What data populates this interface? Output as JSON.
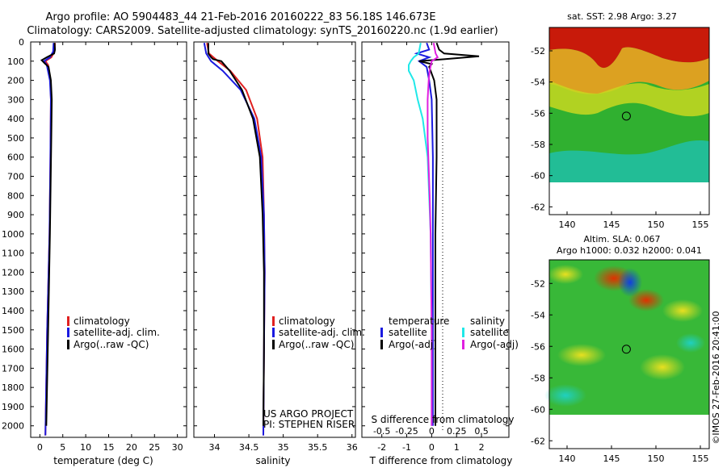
{
  "header": {
    "title_line1": "Argo profile: AO 5904483_44 21-Feb-2016 20160222_83 56.18S 146.673E",
    "title_line2": "Climatology: CARS2009. Satellite-adjusted climatology: synTS_20160220.nc (1.9d earlier)"
  },
  "credit": {
    "line1": "US ARGO PROJECT",
    "line2": "PI: STEPHEN RISER"
  },
  "timestamp": "©IMOS 27-Feb-2016 20:41:00",
  "colors": {
    "climatology": "#e02020",
    "satellite": "#1a1ae0",
    "argo": "#000000",
    "salinity_satellite": "#20e8e8",
    "salinity_argo": "#e020e0"
  },
  "chart_data": [
    {
      "type": "line",
      "id": "temperature",
      "xlabel": "temperature (deg C)",
      "ylabel": "depth",
      "xlim": [
        -2,
        32
      ],
      "ylim": [
        2060,
        0
      ],
      "x_ticks": [
        0,
        5,
        10,
        15,
        20,
        25,
        30
      ],
      "y_ticks": [
        0,
        100,
        200,
        300,
        400,
        500,
        600,
        700,
        800,
        900,
        1000,
        1100,
        1200,
        1300,
        1400,
        1500,
        1600,
        1700,
        1800,
        1900,
        2000
      ],
      "legend": [
        "climatology",
        "satellite-adj. clim.",
        "Argo(..raw -QC)"
      ],
      "series": [
        {
          "name": "climatology",
          "depth": [
            5,
            50,
            80,
            100,
            120,
            200,
            300,
            600,
            1000,
            1500,
            2050
          ],
          "values": [
            3.3,
            3.2,
            2.5,
            1.2,
            1.8,
            2.3,
            2.4,
            2.3,
            2.1,
            1.6,
            1.2
          ]
        },
        {
          "name": "satellite-adj. clim.",
          "depth": [
            5,
            50,
            80,
            100,
            120,
            200,
            300,
            600,
            1000,
            1500,
            2050
          ],
          "values": [
            3.0,
            2.9,
            2.2,
            0.9,
            1.5,
            2.2,
            2.4,
            2.3,
            2.1,
            1.6,
            1.2
          ]
        },
        {
          "name": "Argo(..raw -QC)",
          "depth": [
            5,
            40,
            60,
            80,
            95,
            110,
            130,
            200,
            300,
            500,
            1000,
            1500,
            2000
          ],
          "values": [
            3.2,
            3.3,
            3.1,
            1.5,
            0.4,
            1.0,
            1.9,
            2.4,
            2.6,
            2.5,
            2.2,
            1.8,
            1.4
          ]
        }
      ]
    },
    {
      "type": "line",
      "id": "salinity",
      "xlabel": "salinity",
      "xlim": [
        33.7,
        36.05
      ],
      "ylim": [
        2060,
        0
      ],
      "x_ticks": [
        34,
        34.5,
        35,
        35.5,
        36
      ],
      "legend": [
        "climatology",
        "satellite-adj. clim.",
        "Argo(..raw -QC)"
      ],
      "series": [
        {
          "name": "climatology",
          "depth": [
            5,
            60,
            100,
            150,
            250,
            400,
            600,
            900,
            1200,
            1600,
            2050
          ],
          "values": [
            33.89,
            33.92,
            34.05,
            34.23,
            34.46,
            34.62,
            34.7,
            34.72,
            34.73,
            34.72,
            34.71
          ]
        },
        {
          "name": "satellite-adj. clim.",
          "depth": [
            5,
            60,
            100,
            150,
            250,
            400,
            600,
            900,
            1200,
            1600,
            2050
          ],
          "values": [
            33.85,
            33.88,
            33.95,
            34.12,
            34.38,
            34.58,
            34.68,
            34.72,
            34.73,
            34.72,
            34.71
          ]
        },
        {
          "name": "Argo(..raw -QC)",
          "depth": [
            5,
            60,
            80,
            90,
            100,
            150,
            250,
            400,
            600,
            900,
            1200,
            1600,
            2000
          ],
          "values": [
            33.91,
            33.91,
            33.95,
            33.98,
            34.1,
            34.22,
            34.4,
            34.56,
            34.66,
            34.7,
            34.72,
            34.72,
            34.71
          ]
        }
      ]
    },
    {
      "type": "line",
      "id": "difference",
      "xlabel": "T difference from climatology",
      "x2label": "S difference from climatology",
      "xlim": [
        -2.8,
        3.1
      ],
      "x2lim": [
        -0.7,
        0.775
      ],
      "ylim": [
        2060,
        0
      ],
      "x_ticks": [
        -2,
        -1,
        0,
        1,
        2
      ],
      "x2_ticks": [
        -0.5,
        -0.25,
        0,
        0.25,
        0.5
      ],
      "legend_titles": [
        "temperature",
        "salinity"
      ],
      "legend": [
        "satellite",
        "Argo(-adj)",
        "satellite",
        "Argo(-adj)"
      ],
      "series": [
        {
          "name": "temperature satellite",
          "axis": "T",
          "depth": [
            5,
            40,
            60,
            80,
            100,
            130,
            200,
            300,
            600,
            1000,
            1500,
            2000
          ],
          "values": [
            -0.2,
            -0.1,
            -0.6,
            -0.1,
            -0.5,
            -0.2,
            -0.1,
            0.0,
            0.05,
            0.05,
            0.05,
            0.05
          ]
        },
        {
          "name": "temperature Argo(-adj)",
          "axis": "T",
          "depth": [
            5,
            40,
            60,
            75,
            90,
            100,
            115,
            130,
            200,
            300,
            600,
            1000,
            1500,
            2000
          ],
          "values": [
            0.2,
            0.3,
            0.5,
            1.9,
            0.5,
            -0.5,
            0.0,
            -0.1,
            0.1,
            0.2,
            0.2,
            0.15,
            0.15,
            0.15
          ]
        },
        {
          "name": "salinity satellite",
          "axis": "S",
          "depth": [
            5,
            60,
            80,
            100,
            120,
            150,
            200,
            300,
            400,
            600,
            1000,
            1500,
            2000
          ],
          "values": [
            -0.11,
            -0.13,
            -0.18,
            -0.21,
            -0.23,
            -0.23,
            -0.18,
            -0.14,
            -0.09,
            -0.04,
            -0.01,
            0.0,
            0.0
          ]
        },
        {
          "name": "salinity Argo(-adj)",
          "axis": "S",
          "depth": [
            5,
            60,
            80,
            100,
            150,
            200,
            300,
            500,
            800,
            1000,
            1500,
            2000
          ],
          "values": [
            0.02,
            0.04,
            0.06,
            0.0,
            -0.02,
            -0.03,
            -0.04,
            -0.04,
            -0.02,
            -0.01,
            0.0,
            0.0
          ]
        }
      ]
    },
    {
      "type": "heatmap",
      "id": "sst_map",
      "title": "sat. SST: 2.98 Argo: 3.27",
      "x_ticks": [
        140,
        145,
        150,
        155
      ],
      "y_ticks": [
        -52,
        -54,
        -56,
        -58,
        -60,
        -62
      ],
      "xlim": [
        138,
        156
      ],
      "ylim": [
        -62.5,
        -50.5
      ],
      "marker": {
        "lon": 146.673,
        "lat": -56.18
      }
    },
    {
      "type": "heatmap",
      "id": "sla_map",
      "title_line1": "Altim. SLA: 0.067",
      "title_line2": "Argo h1000: 0.032 h2000: 0.041",
      "x_ticks": [
        140,
        145,
        150,
        155
      ],
      "y_ticks": [
        -52,
        -54,
        -56,
        -58,
        -60,
        -62
      ],
      "xlim": [
        138,
        156
      ],
      "ylim": [
        -62.5,
        -50.5
      ],
      "marker": {
        "lon": 146.673,
        "lat": -56.18
      }
    }
  ]
}
